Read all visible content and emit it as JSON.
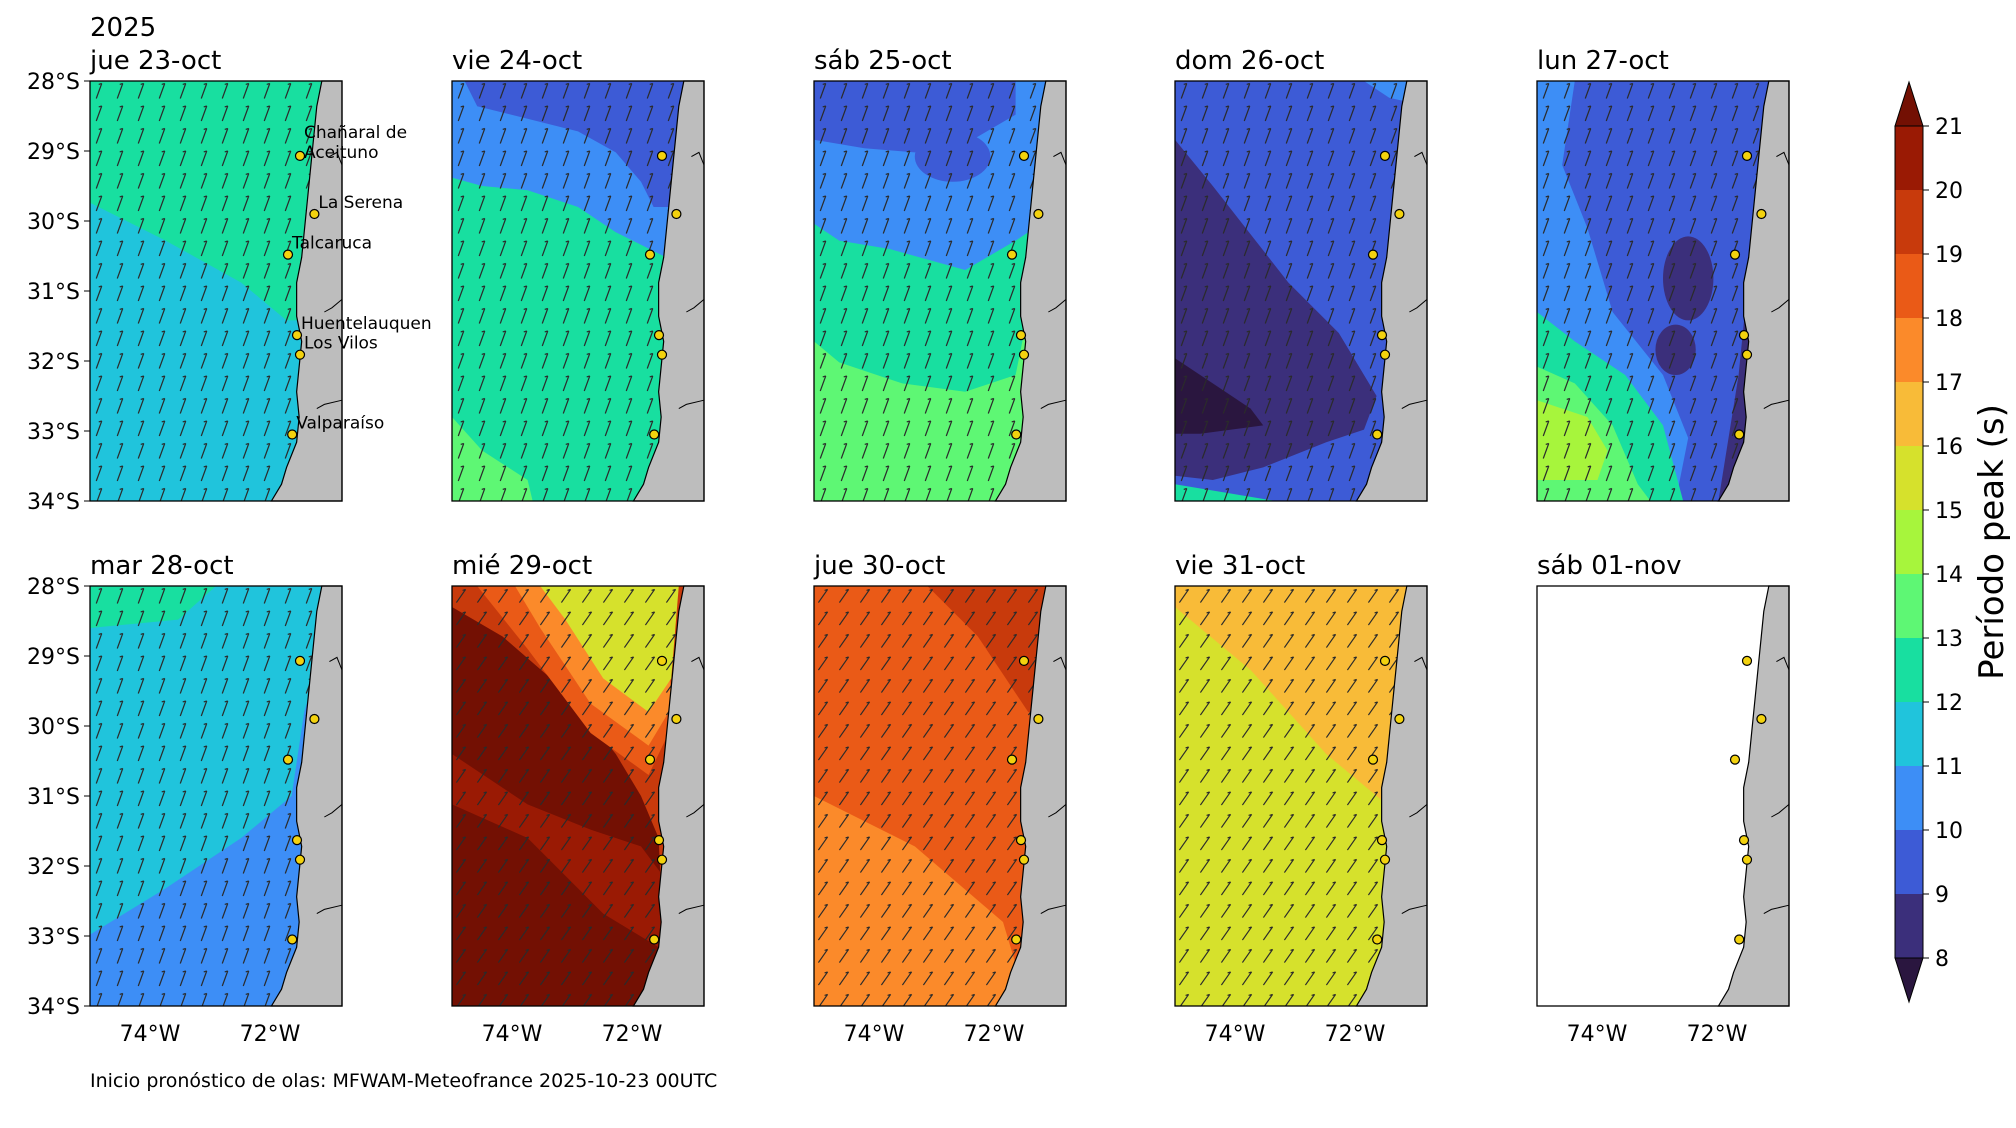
{
  "year_label": "2025",
  "panels": [
    {
      "title": "jue 23-oct",
      "pattern": "p1"
    },
    {
      "title": "vie 24-oct",
      "pattern": "p2"
    },
    {
      "title": "sáb 25-oct",
      "pattern": "p3"
    },
    {
      "title": "dom 26-oct",
      "pattern": "p4"
    },
    {
      "title": "lun 27-oct",
      "pattern": "p5"
    },
    {
      "title": "mar 28-oct",
      "pattern": "p6"
    },
    {
      "title": "mié 29-oct",
      "pattern": "p7"
    },
    {
      "title": "jue 30-oct",
      "pattern": "p8"
    },
    {
      "title": "vie 31-oct",
      "pattern": "p9"
    },
    {
      "title": "sáb 01-nov",
      "pattern": "empty"
    }
  ],
  "lat_ticks": [
    "28°S",
    "29°S",
    "30°S",
    "31°S",
    "32°S",
    "33°S",
    "34°S"
  ],
  "lon_ticks": [
    "74°W",
    "72°W"
  ],
  "map_extent": {
    "lon_min": -75.0,
    "lon_max": -70.8,
    "lat_min": -34.0,
    "lat_max": -28.0
  },
  "locations": [
    {
      "name": "Chañaral de Aceituno",
      "label_lines": [
        "Chañaral de",
        "Aceituno"
      ],
      "lat": -29.07,
      "lon": -71.5
    },
    {
      "name": "La Serena",
      "label_lines": [
        "La Serena"
      ],
      "lat": -29.9,
      "lon": -71.26
    },
    {
      "name": "Talcaruca",
      "label_lines": [
        "Talcaruca"
      ],
      "lat": -30.48,
      "lon": -71.7
    },
    {
      "name": "Huentelauquen",
      "label_lines": [
        "Huentelauquen"
      ],
      "lat": -31.63,
      "lon": -71.55
    },
    {
      "name": "Los Vilos",
      "label_lines": [
        "Los Vilos"
      ],
      "lat": -31.91,
      "lon": -71.5
    },
    {
      "name": "Valparaíso",
      "label_lines": [
        "Valparaíso"
      ],
      "lat": -33.05,
      "lon": -71.63
    }
  ],
  "colorbar": {
    "label": "Período peak (s)",
    "ticks": [
      "8",
      "9",
      "10",
      "11",
      "12",
      "13",
      "14",
      "15",
      "16",
      "17",
      "18",
      "19",
      "20",
      "21"
    ],
    "levels": [
      8,
      9,
      10,
      11,
      12,
      13,
      14,
      15,
      16,
      17,
      18,
      19,
      20,
      21
    ],
    "colors": [
      "#3b2f7b",
      "#3d5bd6",
      "#3d8ef6",
      "#20c4dc",
      "#18dfa0",
      "#5ef774",
      "#a7f53c",
      "#d6e12c",
      "#f8bb38",
      "#fb8a2a",
      "#ea5a17",
      "#c83a0c",
      "#9a1a04"
    ],
    "under_color": "#2a163f",
    "over_color": "#731003"
  },
  "footer": "Inicio pronóstico de olas: MFWAM-Meteofrance 2025-10-23 00UTC"
}
